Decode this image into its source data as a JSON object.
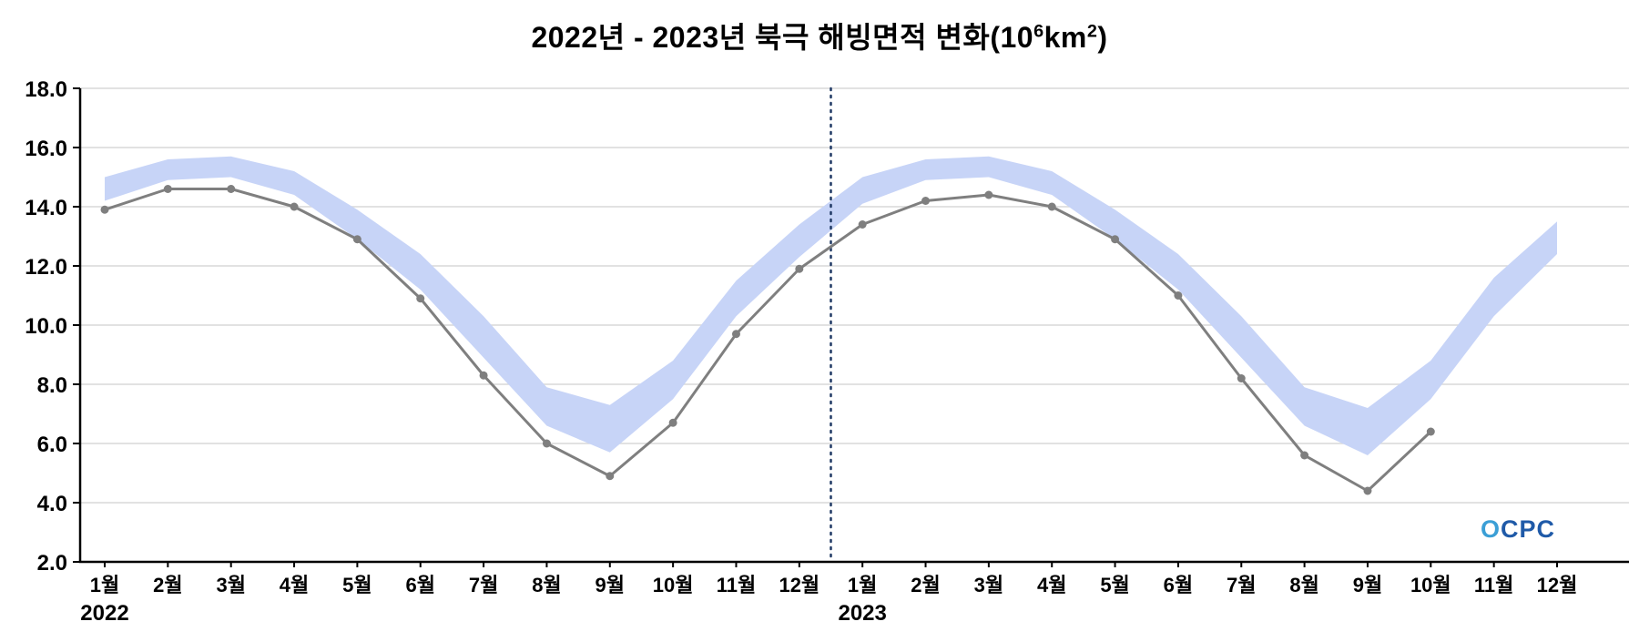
{
  "title": {
    "part1": "2022년 - 2023년 북극 해빙면적 변화(10",
    "sup1": "6",
    "part2": "km",
    "sup2": "2",
    "part3": ")"
  },
  "logo": {
    "first": "O",
    "rest": "CPC"
  },
  "chart_data": {
    "type": "line",
    "title": "2022년 - 2023년 북극 해빙면적 변화(10^6 km^2)",
    "x_tick_labels": [
      "1월",
      "2월",
      "3월",
      "4월",
      "5월",
      "6월",
      "7월",
      "8월",
      "9월",
      "10월",
      "11월",
      "12월",
      "1월",
      "2월",
      "3월",
      "4월",
      "5월",
      "6월",
      "7월",
      "8월",
      "9월",
      "10월",
      "11월",
      "12월"
    ],
    "year_labels": [
      {
        "text": "2022",
        "month_index": 0
      },
      {
        "text": "2023",
        "month_index": 12
      }
    ],
    "ylim": [
      2.0,
      18.0
    ],
    "y_ticks": [
      2,
      4,
      6,
      8,
      10,
      12,
      14,
      16,
      18
    ],
    "y_tick_labels": [
      "2.0",
      "4.0",
      "6.0",
      "8.0",
      "10.0",
      "12.0",
      "14.0",
      "16.0",
      "18.0"
    ],
    "grid": true,
    "legend": "none",
    "colors": {
      "grid": "#d9d9d9",
      "axis": "#000000",
      "background": "#ffffff"
    },
    "band": {
      "name": "climatology-range",
      "color": "#c7d4f7",
      "upper": [
        15.0,
        15.6,
        15.7,
        15.2,
        13.9,
        12.4,
        10.3,
        7.9,
        7.3,
        8.8,
        11.5,
        13.4,
        15.0,
        15.6,
        15.7,
        15.2,
        13.9,
        12.4,
        10.3,
        7.9,
        7.2,
        8.8,
        11.6,
        13.5
      ],
      "lower": [
        14.2,
        14.9,
        15.0,
        14.4,
        12.9,
        11.2,
        8.9,
        6.6,
        5.7,
        7.5,
        10.3,
        12.3,
        14.1,
        14.9,
        15.0,
        14.4,
        12.9,
        11.2,
        8.9,
        6.6,
        5.6,
        7.5,
        10.3,
        12.4
      ]
    },
    "series": [
      {
        "name": "observed-sea-ice-extent",
        "color": "#7f7f7f",
        "values": [
          13.9,
          14.6,
          14.6,
          14.0,
          12.9,
          10.9,
          8.3,
          6.0,
          4.9,
          6.7,
          9.7,
          11.9,
          13.4,
          14.2,
          14.4,
          14.0,
          12.9,
          11.0,
          8.2,
          5.6,
          4.4,
          6.4,
          null,
          null
        ]
      }
    ],
    "divider": {
      "between": [
        11,
        12
      ],
      "color": "#1f3864",
      "style": "dotted"
    }
  }
}
